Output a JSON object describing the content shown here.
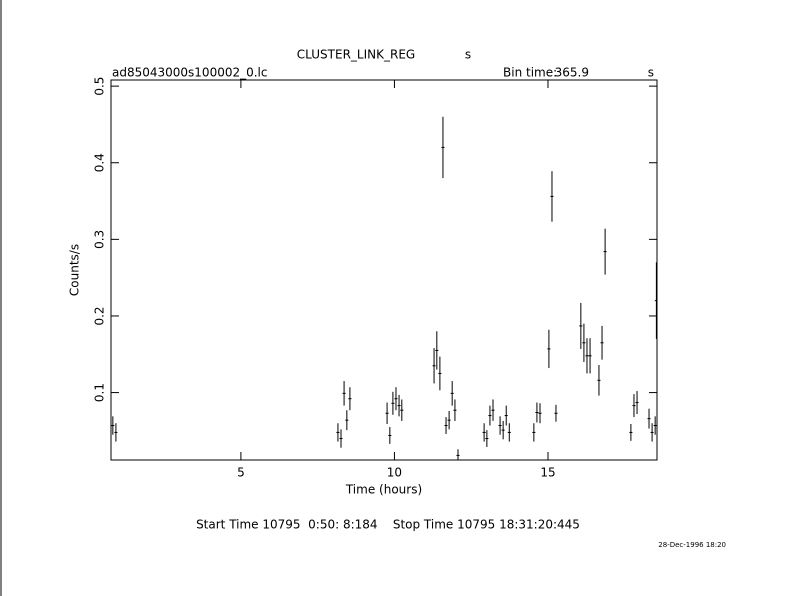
{
  "chart_data": {
    "type": "errorbar",
    "title": "CLUSTER_LINK_REG",
    "title_unit": "s",
    "file": "ad85043000s100002_0.lc",
    "bin_label": "Bin time:",
    "bin_time": "365.9",
    "bin_unit": "s",
    "xlabel": "Time (hours)",
    "ylabel": "Counts/s",
    "footer": "Start Time 10795  0:50: 8:184    Stop Time 10795 18:31:20:445",
    "date": "28-Dec-1996 18:20",
    "color": "#000000",
    "xlim": [
      0.77,
      18.55
    ],
    "ylim": [
      0.012,
      0.508
    ],
    "xticks": [
      5,
      10,
      15
    ],
    "yticks": [
      0.1,
      0.2,
      0.3,
      0.4,
      0.5
    ],
    "xerr": 0.05,
    "x": [
      0.83,
      0.93,
      8.16,
      8.26,
      8.36,
      8.45,
      8.55,
      9.76,
      9.85,
      9.95,
      10.05,
      10.15,
      10.24,
      11.29,
      11.38,
      11.48,
      11.58,
      11.68,
      11.78,
      11.88,
      11.97,
      12.07,
      12.92,
      13.01,
      13.11,
      13.21,
      13.44,
      13.54,
      13.64,
      13.74,
      14.54,
      14.64,
      14.74,
      15.03,
      15.13,
      15.26,
      16.07,
      16.17,
      16.27,
      16.37,
      16.66,
      16.76,
      16.86,
      17.7,
      17.8,
      17.9,
      18.29,
      18.39,
      18.49,
      18.53
    ],
    "y": [
      0.057,
      0.048,
      0.048,
      0.04,
      0.099,
      0.064,
      0.092,
      0.073,
      0.044,
      0.086,
      0.092,
      0.083,
      0.077,
      0.135,
      0.155,
      0.125,
      0.42,
      0.057,
      0.064,
      0.099,
      0.077,
      0.018,
      0.048,
      0.04,
      0.07,
      0.077,
      0.057,
      0.051,
      0.07,
      0.048,
      0.048,
      0.074,
      0.073,
      0.157,
      0.356,
      0.073,
      0.187,
      0.165,
      0.148,
      0.148,
      0.116,
      0.165,
      0.284,
      0.048,
      0.083,
      0.087,
      0.066,
      0.048,
      0.057,
      0.22
    ],
    "yerr": [
      0.012,
      0.012,
      0.012,
      0.012,
      0.016,
      0.013,
      0.015,
      0.014,
      0.011,
      0.015,
      0.015,
      0.014,
      0.014,
      0.023,
      0.025,
      0.022,
      0.04,
      0.011,
      0.012,
      0.016,
      0.014,
      0.008,
      0.012,
      0.011,
      0.013,
      0.014,
      0.012,
      0.012,
      0.013,
      0.012,
      0.012,
      0.013,
      0.013,
      0.025,
      0.033,
      0.011,
      0.03,
      0.025,
      0.023,
      0.023,
      0.02,
      0.022,
      0.03,
      0.011,
      0.015,
      0.015,
      0.013,
      0.012,
      0.012,
      0.05
    ]
  }
}
